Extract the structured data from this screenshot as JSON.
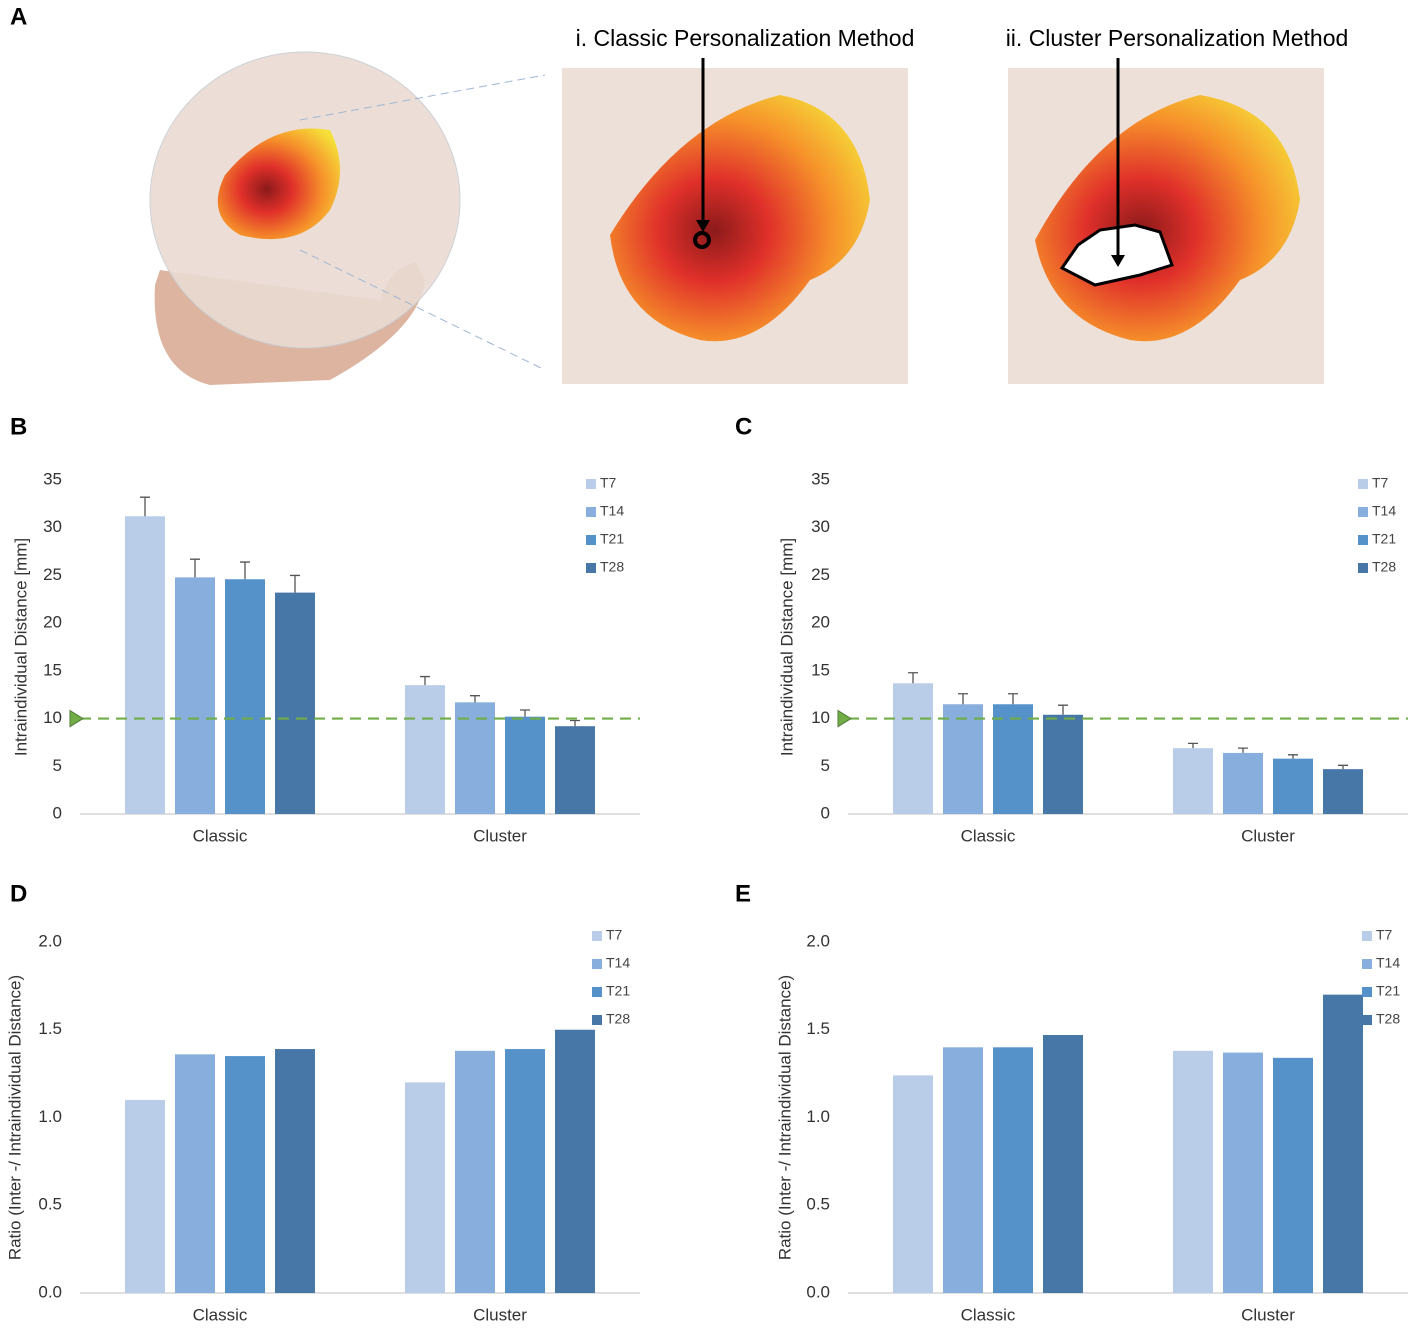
{
  "illustration": {
    "label": "A",
    "captions": [
      "i. Classic Personalization Method",
      "ii. Cluster Personalization Method"
    ]
  },
  "chart_data": [
    {
      "type": "bar",
      "panel_label": "B",
      "y_label": "Intraindividual Distance [mm]",
      "categories": [
        "Classic",
        "Cluster"
      ],
      "series": [
        {
          "name": "T7",
          "color": "#b9cde9",
          "values": [
            31.2,
            13.5
          ],
          "errors": [
            2.0,
            0.9
          ]
        },
        {
          "name": "T14",
          "color": "#87aedd",
          "values": [
            24.8,
            11.7
          ],
          "errors": [
            1.9,
            0.7
          ]
        },
        {
          "name": "T21",
          "color": "#5592c9",
          "values": [
            24.6,
            10.2
          ],
          "errors": [
            1.8,
            0.7
          ]
        },
        {
          "name": "T28",
          "color": "#4677a7",
          "values": [
            23.2,
            9.2
          ],
          "errors": [
            1.8,
            0.6
          ]
        }
      ],
      "reference_line": 10,
      "reference_color": "#70ad47",
      "ylim": [
        0,
        35
      ],
      "yticks": [
        0,
        5,
        10,
        15,
        20,
        25,
        30,
        35
      ]
    },
    {
      "type": "bar",
      "panel_label": "C",
      "y_label": "Intraindividual Distance [mm]",
      "categories": [
        "Classic",
        "Cluster"
      ],
      "series": [
        {
          "name": "T7",
          "color": "#b9cde9",
          "values": [
            13.7,
            6.9
          ],
          "errors": [
            1.1,
            0.5
          ]
        },
        {
          "name": "T14",
          "color": "#87aedd",
          "values": [
            11.5,
            6.4
          ],
          "errors": [
            1.1,
            0.5
          ]
        },
        {
          "name": "T21",
          "color": "#5592c9",
          "values": [
            11.5,
            5.8
          ],
          "errors": [
            1.1,
            0.4
          ]
        },
        {
          "name": "T28",
          "color": "#4677a7",
          "values": [
            10.4,
            4.7
          ],
          "errors": [
            1.0,
            0.4
          ]
        }
      ],
      "reference_line": 10,
      "reference_color": "#70ad47",
      "ylim": [
        0,
        35
      ],
      "yticks": [
        0,
        5,
        10,
        15,
        20,
        25,
        30,
        35
      ]
    },
    {
      "type": "bar",
      "panel_label": "D",
      "y_label": "Ratio (Inter -/ Intraindividual Distance)",
      "categories": [
        "Classic",
        "Cluster"
      ],
      "series": [
        {
          "name": "T7",
          "color": "#b9cde9",
          "values": [
            1.1,
            1.2
          ]
        },
        {
          "name": "T14",
          "color": "#87aedd",
          "values": [
            1.36,
            1.38
          ]
        },
        {
          "name": "T21",
          "color": "#5592c9",
          "values": [
            1.35,
            1.39
          ]
        },
        {
          "name": "T28",
          "color": "#4677a7",
          "values": [
            1.39,
            1.5
          ]
        }
      ],
      "ylim": [
        0,
        2
      ],
      "yticks": [
        {
          "value": 0,
          "label": "0.0"
        },
        {
          "value": 0.5,
          "label": "0.5"
        },
        {
          "value": 1,
          "label": "1.0"
        },
        {
          "value": 1.5,
          "label": "1.5"
        },
        {
          "value": 2,
          "label": "2.0"
        }
      ]
    },
    {
      "type": "bar",
      "panel_label": "E",
      "y_label": "Ratio (Inter -/ Intraindividual Distance)",
      "categories": [
        "Classic",
        "Cluster"
      ],
      "series": [
        {
          "name": "T7",
          "color": "#b9cde9",
          "values": [
            1.24,
            1.38
          ]
        },
        {
          "name": "T14",
          "color": "#87aedd",
          "values": [
            1.4,
            1.37
          ]
        },
        {
          "name": "T21",
          "color": "#5592c9",
          "values": [
            1.4,
            1.34
          ]
        },
        {
          "name": "T28",
          "color": "#4677a7",
          "values": [
            1.47,
            1.7
          ]
        }
      ],
      "ylim": [
        0,
        2
      ],
      "yticks": [
        {
          "value": 0,
          "label": "0.0"
        },
        {
          "value": 0.5,
          "label": "0.5"
        },
        {
          "value": 1,
          "label": "1.0"
        },
        {
          "value": 1.5,
          "label": "1.5"
        },
        {
          "value": 2,
          "label": "2.0"
        }
      ]
    }
  ]
}
